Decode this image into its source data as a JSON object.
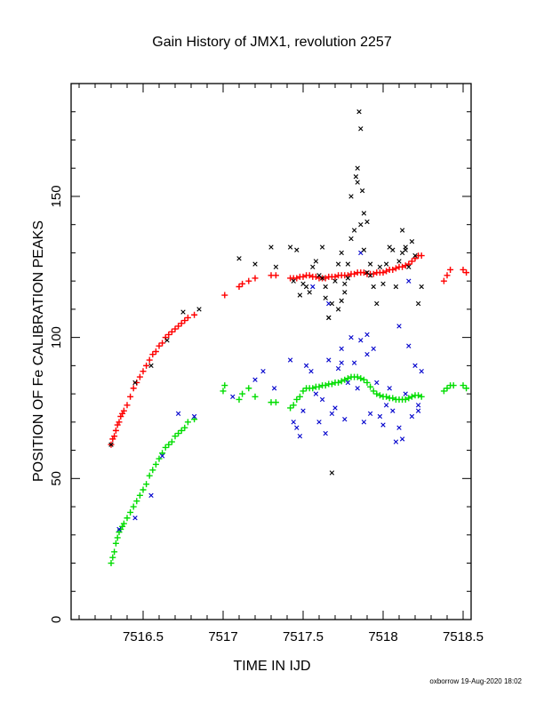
{
  "chart_data": {
    "type": "scatter",
    "title": "Gain History of JMX1, revolution 2257",
    "xlabel": "TIME IN IJD",
    "ylabel": "POSITION OF Fe CALIBRATION PEAKS",
    "footer": "oxborrow 19-Aug-2020 18:02",
    "xlim": [
      7516.05,
      7518.55
    ],
    "ylim": [
      0,
      190
    ],
    "x_ticks": [
      {
        "value": 7516.5,
        "label": "7516.5"
      },
      {
        "value": 7517,
        "label": "7517"
      },
      {
        "value": 7517.5,
        "label": "7517.5"
      },
      {
        "value": 7518,
        "label": "7518"
      },
      {
        "value": 7518.5,
        "label": "7518.5"
      }
    ],
    "y_ticks": [
      {
        "value": 0,
        "label": "0"
      },
      {
        "value": 50,
        "label": "50"
      },
      {
        "value": 100,
        "label": "100"
      },
      {
        "value": 150,
        "label": "150"
      }
    ],
    "grid": false,
    "colors": {
      "red": "#ff0000",
      "green": "#00dd00",
      "blue": "#0000cc",
      "black": "#000000"
    },
    "series": [
      {
        "color": "#ff0000",
        "marker": "plus",
        "x": [
          7516.3,
          7516.31,
          7516.32,
          7516.33,
          7516.34,
          7516.35,
          7516.36,
          7516.37,
          7516.38,
          7516.4,
          7516.42,
          7516.44,
          7516.46,
          7516.48,
          7516.5,
          7516.52,
          7516.54,
          7516.56,
          7516.58,
          7516.6,
          7516.62,
          7516.64,
          7516.66,
          7516.68,
          7516.7,
          7516.72,
          7516.74,
          7516.76,
          7516.78,
          7516.82,
          7517.01,
          7517.1,
          7517.12,
          7517.16,
          7517.2,
          7517.3,
          7517.33,
          7517.42,
          7517.44,
          7517.46,
          7517.48,
          7517.5,
          7517.52,
          7517.54,
          7517.56,
          7517.58,
          7517.6,
          7517.62,
          7517.64,
          7517.66,
          7517.68,
          7517.7,
          7517.72,
          7517.74,
          7517.76,
          7517.78,
          7517.8,
          7517.82,
          7517.84,
          7517.86,
          7517.88,
          7517.9,
          7517.92,
          7517.94,
          7517.96,
          7517.98,
          7518.0,
          7518.02,
          7518.04,
          7518.06,
          7518.08,
          7518.1,
          7518.12,
          7518.14,
          7518.16,
          7518.18,
          7518.2,
          7518.22,
          7518.24,
          7518.38,
          7518.4,
          7518.42,
          7518.5,
          7518.52
        ],
        "y": [
          62,
          64,
          65,
          67,
          69,
          70,
          72,
          73,
          74,
          76,
          79,
          82,
          84,
          86,
          88,
          90,
          92,
          94,
          95,
          97,
          98,
          100,
          101,
          102,
          103,
          104,
          105,
          106,
          107,
          108,
          115,
          118,
          119,
          120,
          121,
          122,
          122,
          121,
          121,
          121,
          121.5,
          121.5,
          122,
          122,
          121.5,
          121.5,
          121,
          121,
          121,
          121.5,
          121.5,
          121.5,
          122,
          122,
          122,
          122,
          122.5,
          122.5,
          123,
          123,
          123,
          122.5,
          122.5,
          122.5,
          123,
          123,
          123,
          123.5,
          124,
          124,
          124.5,
          125,
          125,
          125.5,
          126,
          127,
          128,
          129,
          129,
          120,
          122,
          124,
          124,
          123
        ]
      },
      {
        "color": "#00dd00",
        "marker": "plus",
        "x": [
          7516.3,
          7516.31,
          7516.32,
          7516.33,
          7516.34,
          7516.35,
          7516.36,
          7516.37,
          7516.38,
          7516.4,
          7516.42,
          7516.44,
          7516.46,
          7516.48,
          7516.5,
          7516.52,
          7516.54,
          7516.56,
          7516.58,
          7516.6,
          7516.62,
          7516.64,
          7516.66,
          7516.68,
          7516.7,
          7516.72,
          7516.74,
          7516.76,
          7516.78,
          7516.82,
          7517.0,
          7517.01,
          7517.1,
          7517.12,
          7517.16,
          7517.2,
          7517.3,
          7517.33,
          7517.42,
          7517.44,
          7517.46,
          7517.48,
          7517.5,
          7517.52,
          7517.54,
          7517.56,
          7517.58,
          7517.6,
          7517.62,
          7517.64,
          7517.66,
          7517.68,
          7517.7,
          7517.72,
          7517.74,
          7517.76,
          7517.78,
          7517.8,
          7517.82,
          7517.84,
          7517.86,
          7517.88,
          7517.9,
          7517.92,
          7517.94,
          7517.96,
          7517.98,
          7518.0,
          7518.02,
          7518.04,
          7518.06,
          7518.08,
          7518.1,
          7518.12,
          7518.14,
          7518.16,
          7518.18,
          7518.2,
          7518.22,
          7518.24,
          7518.38,
          7518.4,
          7518.42,
          7518.44,
          7518.5,
          7518.52
        ],
        "y": [
          20,
          22,
          24,
          27,
          29,
          31,
          32,
          33,
          34,
          36,
          38,
          40,
          42,
          44,
          46,
          48,
          51,
          53,
          55,
          57,
          59,
          61,
          62,
          63,
          65,
          66,
          67,
          68,
          70,
          71,
          81,
          83,
          78,
          80,
          82,
          79,
          77,
          77,
          75,
          76,
          78,
          79,
          81,
          82,
          82,
          82,
          82.5,
          82.5,
          83,
          83,
          83.5,
          83.5,
          84,
          84,
          84.5,
          85,
          85.5,
          86,
          86,
          86,
          85.5,
          85,
          84,
          82.5,
          81,
          80,
          79.5,
          79,
          79,
          78.5,
          78.5,
          78,
          78,
          78,
          78,
          78.5,
          79,
          79.5,
          79.5,
          79,
          81,
          82,
          83,
          83,
          83,
          82
        ]
      },
      {
        "color": "#0000cc",
        "marker": "cross",
        "x": [
          7516.35,
          7516.45,
          7516.55,
          7516.62,
          7516.72,
          7516.82,
          7517.06,
          7517.2,
          7517.25,
          7517.32,
          7517.42,
          7517.44,
          7517.46,
          7517.48,
          7517.5,
          7517.52,
          7517.55,
          7517.58,
          7517.6,
          7517.62,
          7517.64,
          7517.66,
          7517.68,
          7517.7,
          7517.72,
          7517.74,
          7517.76,
          7517.78,
          7517.8,
          7517.82,
          7517.84,
          7517.86,
          7517.88,
          7517.9,
          7517.92,
          7517.94,
          7517.96,
          7517.98,
          7518.0,
          7518.02,
          7518.04,
          7518.06,
          7518.08,
          7518.1,
          7518.12,
          7518.14,
          7518.16,
          7518.18,
          7518.2,
          7518.22,
          7518.24,
          7517.56,
          7517.66,
          7517.86,
          7518.1,
          7518.22,
          7517.74,
          7517.9,
          7518.16
        ],
        "y": [
          32,
          36,
          44,
          58,
          73,
          72,
          79,
          85,
          88,
          82,
          92,
          70,
          68,
          65,
          74,
          90,
          88,
          80,
          70,
          78,
          66,
          92,
          73,
          75,
          89,
          96,
          71,
          84,
          100,
          91,
          82,
          99,
          70,
          94,
          73,
          96,
          84,
          72,
          69,
          76,
          82,
          74,
          63,
          68,
          64,
          80,
          97,
          72,
          90,
          74,
          88,
          118,
          112,
          130,
          104,
          76,
          91,
          101,
          120
        ]
      },
      {
        "color": "#000000",
        "marker": "cross",
        "x": [
          7516.3,
          7516.45,
          7516.55,
          7516.65,
          7516.75,
          7516.85,
          7517.1,
          7517.2,
          7517.3,
          7517.33,
          7517.42,
          7517.44,
          7517.46,
          7517.48,
          7517.5,
          7517.52,
          7517.54,
          7517.56,
          7517.58,
          7517.6,
          7517.62,
          7517.64,
          7517.66,
          7517.68,
          7517.7,
          7517.72,
          7517.74,
          7517.76,
          7517.78,
          7517.8,
          7517.82,
          7517.84,
          7517.86,
          7517.88,
          7517.9,
          7517.92,
          7517.94,
          7517.96,
          7517.98,
          7518.0,
          7518.02,
          7518.04,
          7518.06,
          7518.08,
          7518.1,
          7518.12,
          7518.14,
          7518.16,
          7518.18,
          7518.2,
          7518.22,
          7518.24,
          7517.85,
          7517.86,
          7517.83,
          7517.84,
          7517.87,
          7517.88,
          7517.8,
          7517.78,
          7517.76,
          7517.74,
          7517.72,
          7517.9,
          7517.92,
          7518.12,
          7518.14,
          7517.68,
          7517.66,
          7517.64,
          7517.62
        ],
        "y": [
          62,
          84,
          90,
          99,
          109,
          110,
          128,
          126,
          132,
          125,
          132,
          120,
          131,
          115,
          119,
          118,
          116,
          125,
          127,
          122,
          132,
          118,
          107,
          112,
          120,
          126,
          130,
          119,
          126,
          150,
          138,
          160,
          140,
          131,
          123,
          122,
          118,
          112,
          125,
          119,
          126,
          132,
          131,
          118,
          127,
          138,
          131,
          125,
          134,
          129,
          112,
          118,
          180,
          174,
          157,
          155,
          152,
          144,
          135,
          121,
          116,
          113,
          110,
          141,
          126,
          130,
          132,
          52,
          107,
          114,
          121
        ]
      }
    ]
  }
}
